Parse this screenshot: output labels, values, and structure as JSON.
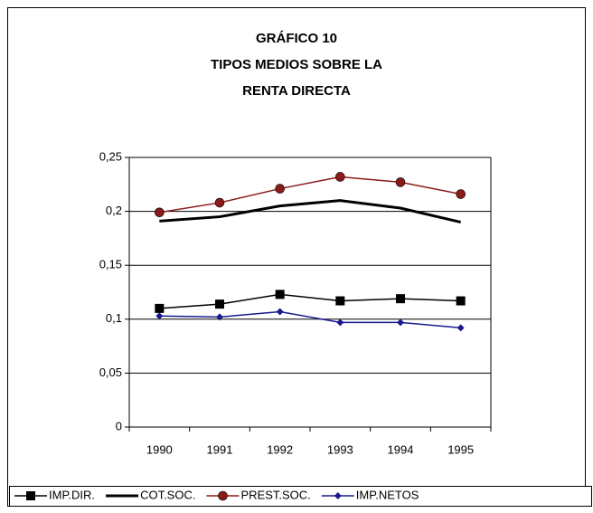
{
  "chart_data": {
    "type": "line",
    "title": [
      "GRÁFICO 10",
      "TIPOS MEDIOS SOBRE LA",
      "RENTA DIRECTA"
    ],
    "categories": [
      "1990",
      "1991",
      "1992",
      "1993",
      "1994",
      "1995"
    ],
    "series": [
      {
        "name": "IMP.DIR.",
        "color": "#000000",
        "marker": "square",
        "values": [
          0.11,
          0.114,
          0.123,
          0.117,
          0.119,
          0.117
        ]
      },
      {
        "name": "COT.SOC.",
        "color": "#000000",
        "marker": "none",
        "values": [
          0.191,
          0.195,
          0.205,
          0.21,
          0.203,
          0.19
        ]
      },
      {
        "name": "PREST.SOC.",
        "color": "#8b1a1a",
        "marker": "circle",
        "values": [
          0.199,
          0.208,
          0.221,
          0.232,
          0.227,
          0.216
        ]
      },
      {
        "name": "IMP.NETOS",
        "color": "#1a1a8c",
        "marker": "diamond",
        "values": [
          0.103,
          0.102,
          0.107,
          0.097,
          0.097,
          0.092
        ]
      }
    ],
    "ylim": [
      0,
      0.25
    ],
    "yticks": [
      0,
      {
        "value": 0.05,
        "label": "0,05"
      },
      {
        "value": 0.1,
        "label": "0,1"
      },
      {
        "value": 0.15,
        "label": "0,15"
      },
      {
        "value": 0.2,
        "label": "0,2"
      },
      {
        "value": 0.25,
        "label": "0,25"
      }
    ],
    "grid": true,
    "legend": "bottom"
  }
}
